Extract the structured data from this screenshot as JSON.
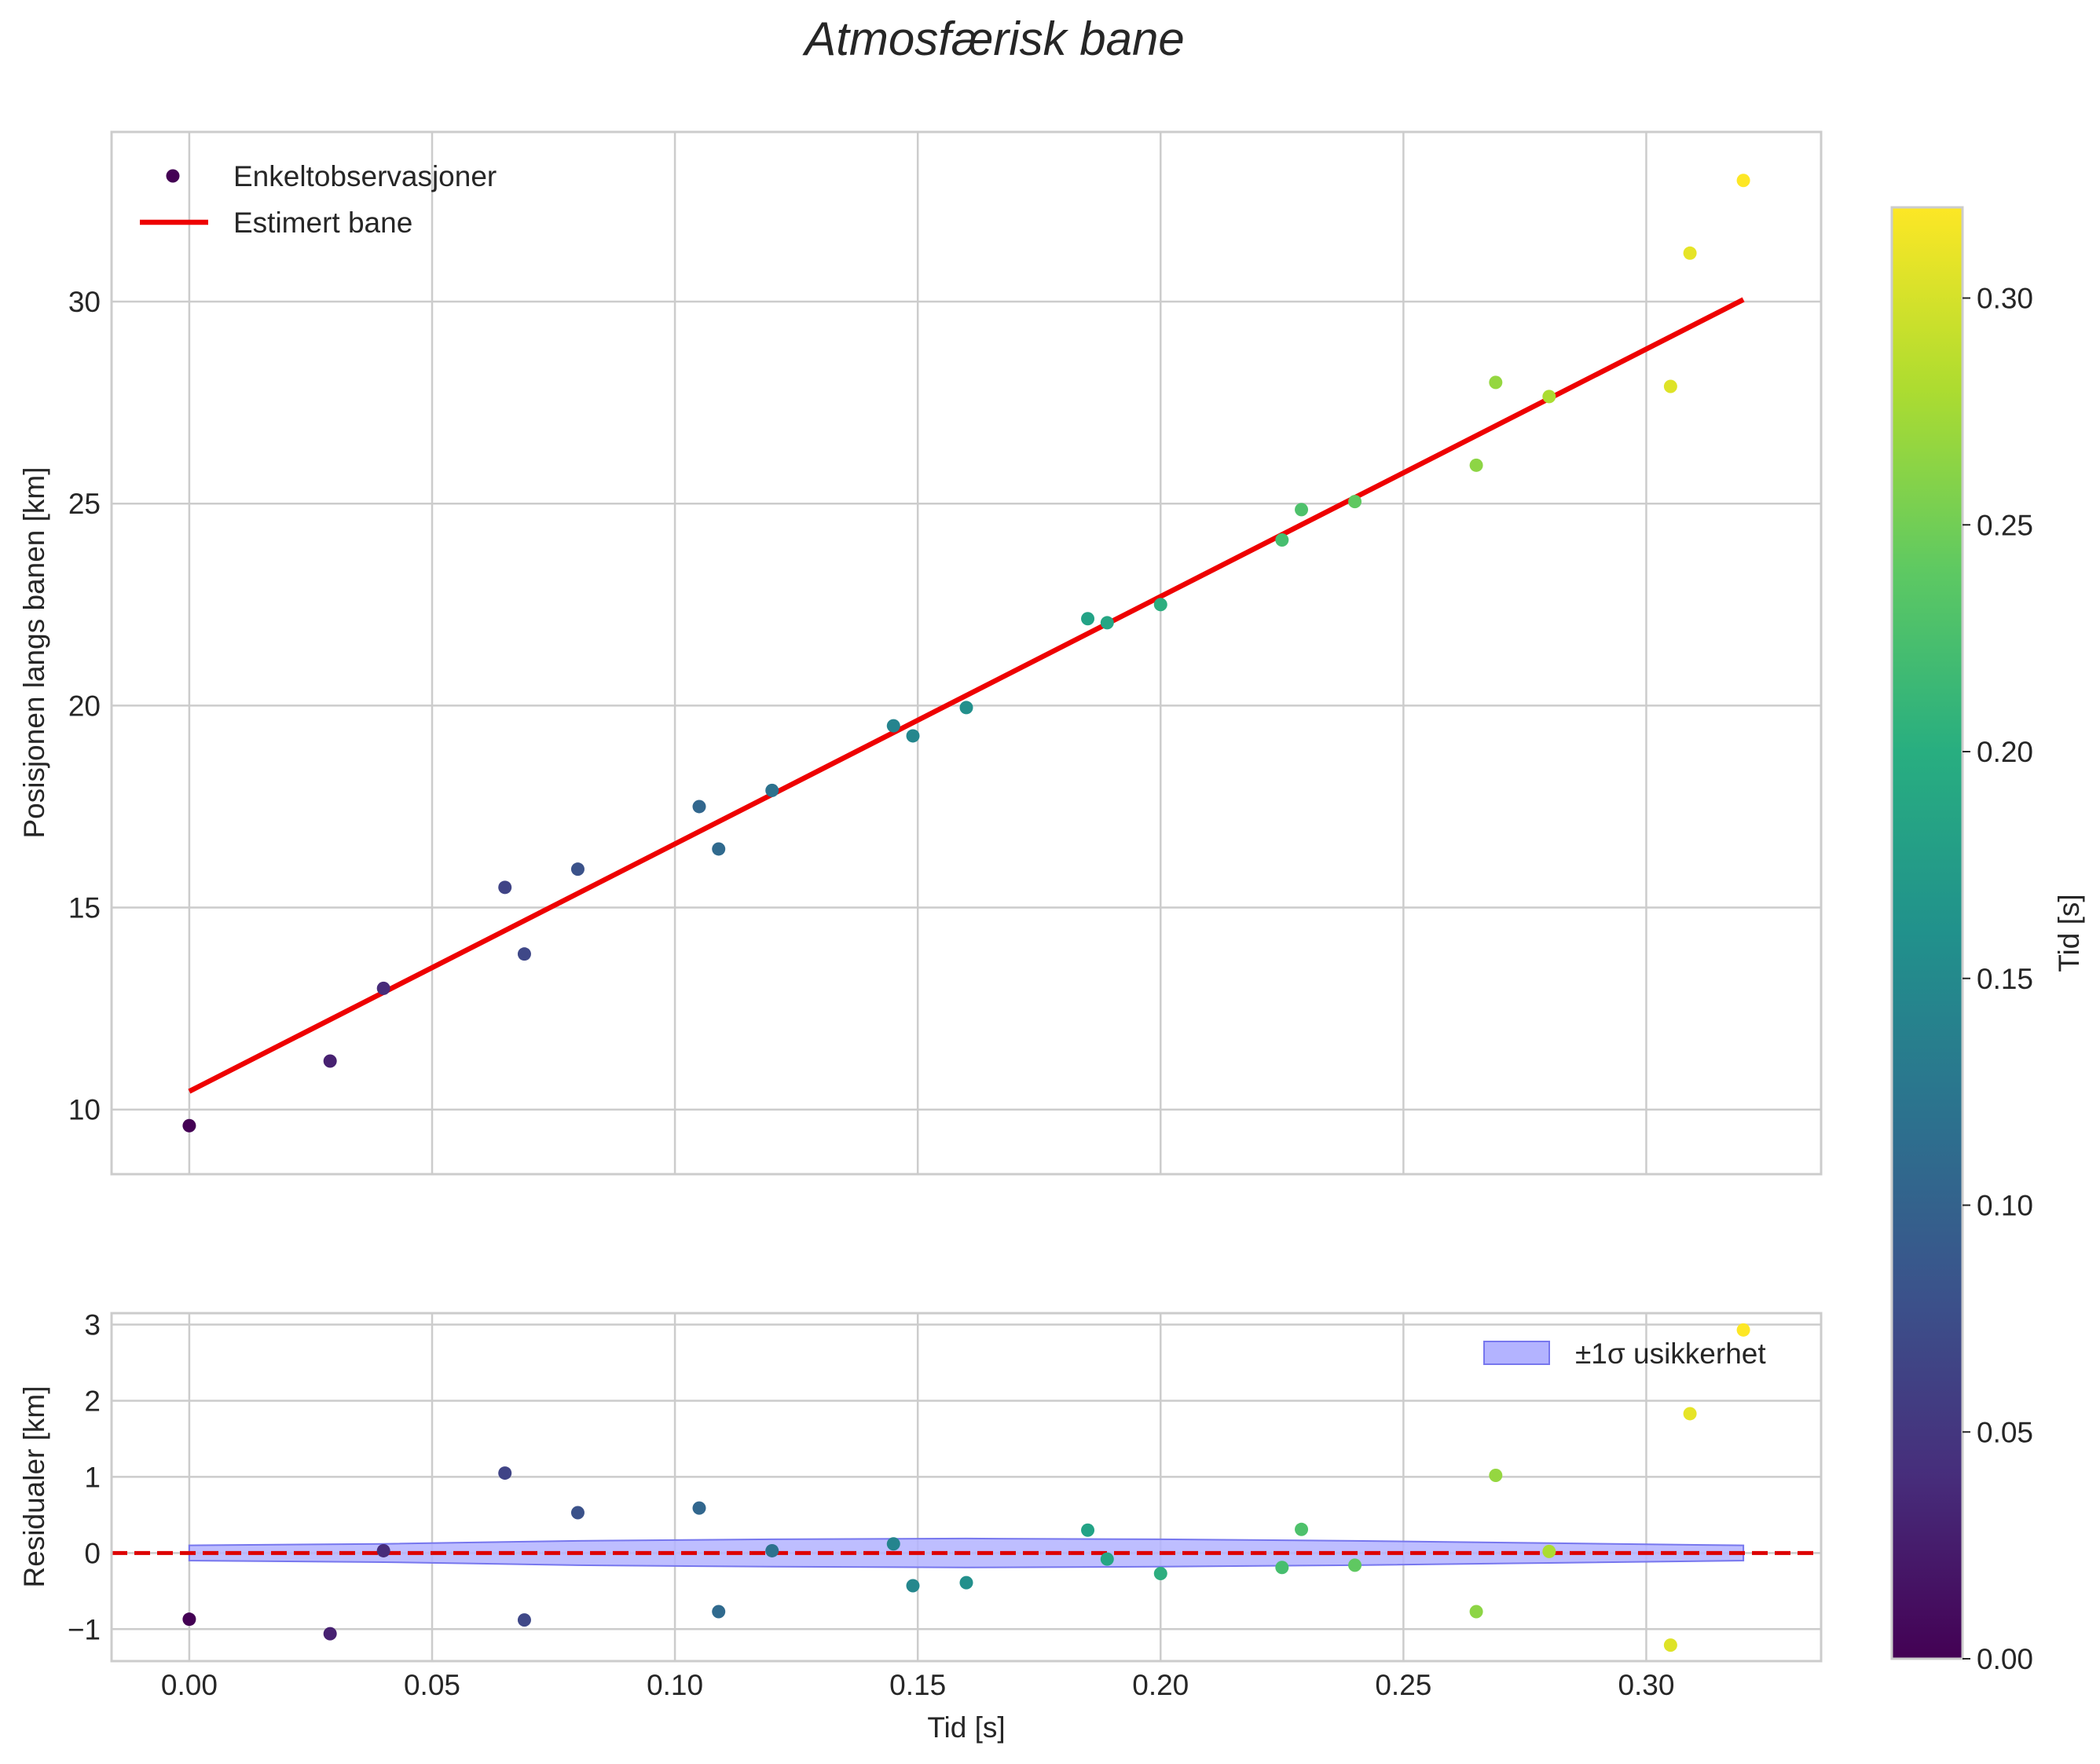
{
  "chart_data": {
    "title": "Atmosfærisk bane",
    "colors": {
      "fit_line": "#ee0000",
      "zero_line": "#dd0000",
      "band_fill": "#b3b3ff",
      "band_edge": "#7777ee",
      "grid": "#cccccc"
    },
    "main": {
      "type": "scatter",
      "ylabel": "Posisjonen langs banen [km]",
      "xlim": [
        -0.016,
        0.336
      ],
      "ylim": [
        8.4,
        34.2
      ],
      "xticks": [
        0.0,
        0.05,
        0.1,
        0.15,
        0.2,
        0.25,
        0.3
      ],
      "yticks": [
        10,
        15,
        20,
        25,
        30
      ],
      "ytick_labels": [
        "10",
        "15",
        "20",
        "25",
        "30"
      ],
      "grid": true,
      "legend_position": "top-left",
      "legend": {
        "scatter_label": "Enkeltobservasjoner",
        "line_label": "Estimert bane"
      },
      "observations": {
        "x": [
          0.0,
          0.029,
          0.04,
          0.065,
          0.069,
          0.08,
          0.105,
          0.109,
          0.12,
          0.145,
          0.149,
          0.16,
          0.185,
          0.189,
          0.2,
          0.225,
          0.229,
          0.24,
          0.265,
          0.269,
          0.28,
          0.305,
          0.309,
          0.32
        ],
        "y": [
          9.6,
          11.2,
          13.0,
          15.5,
          13.85,
          15.95,
          17.5,
          16.45,
          17.9,
          19.5,
          19.25,
          19.95,
          22.15,
          22.05,
          22.5,
          24.1,
          24.85,
          25.05,
          25.95,
          28.0,
          27.65,
          27.9,
          31.2,
          33.0
        ]
      },
      "fit_line": {
        "x": [
          0.0,
          0.32
        ],
        "y": [
          10.45,
          30.05
        ]
      }
    },
    "residuals": {
      "type": "scatter",
      "xlabel": "Tid [s]",
      "ylabel": "Residualer [km]",
      "xlim": [
        -0.016,
        0.336
      ],
      "ylim": [
        -1.42,
        3.15
      ],
      "xticks": [
        0.0,
        0.05,
        0.1,
        0.15,
        0.2,
        0.25,
        0.3
      ],
      "xtick_labels": [
        "0.00",
        "0.05",
        "0.10",
        "0.15",
        "0.20",
        "0.25",
        "0.30"
      ],
      "yticks": [
        -1,
        0,
        1,
        2,
        3
      ],
      "ytick_labels": [
        "−1",
        "0",
        "1",
        "2",
        "3"
      ],
      "grid": true,
      "legend_position": "top-right",
      "legend": {
        "band_label": "±1σ usikkerhet"
      },
      "values": [
        -0.87,
        -1.06,
        0.03,
        1.05,
        -0.88,
        0.53,
        0.59,
        -0.77,
        0.03,
        0.12,
        -0.43,
        -0.39,
        0.3,
        -0.08,
        -0.27,
        -0.19,
        0.31,
        -0.16,
        -0.77,
        1.02,
        0.02,
        -1.21,
        1.83,
        2.93
      ],
      "band": {
        "x": [
          0.0,
          0.04,
          0.08,
          0.12,
          0.16,
          0.2,
          0.24,
          0.28,
          0.32
        ],
        "sigma": [
          0.1,
          0.12,
          0.16,
          0.18,
          0.19,
          0.18,
          0.16,
          0.13,
          0.1
        ]
      }
    },
    "colorbar": {
      "label": "Tid [s]",
      "colormap": "viridis",
      "range": [
        0.0,
        0.32
      ],
      "ticks": [
        0.0,
        0.05,
        0.1,
        0.15,
        0.2,
        0.25,
        0.3
      ],
      "tick_labels": [
        "0.00",
        "0.05",
        "0.10",
        "0.15",
        "0.20",
        "0.25",
        "0.30"
      ]
    }
  }
}
